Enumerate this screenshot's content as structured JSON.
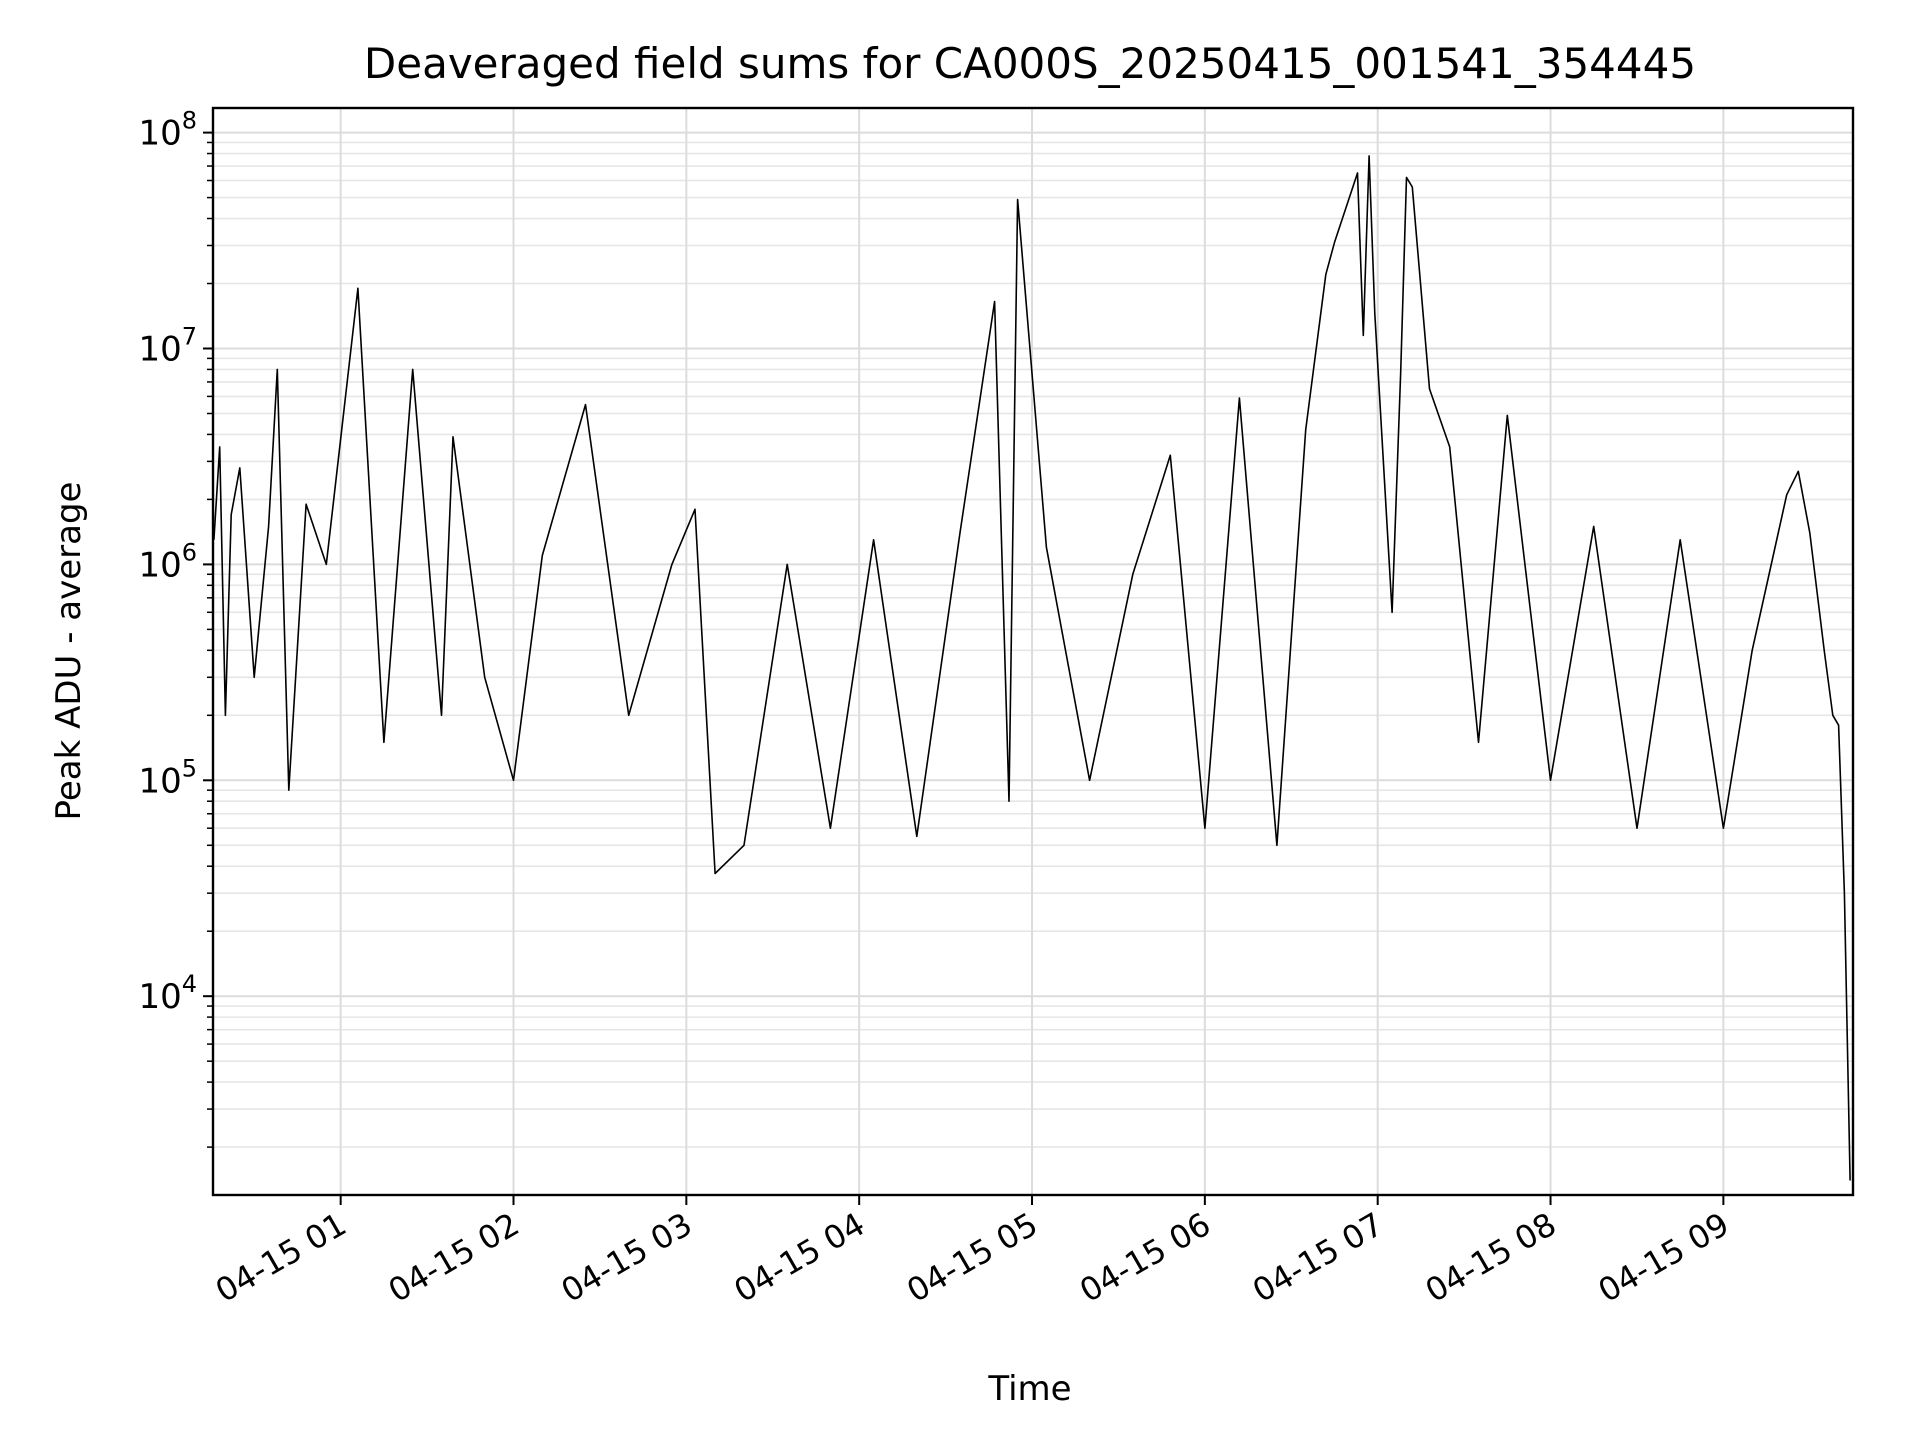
{
  "chart_data": {
    "type": "line",
    "title": "Deaveraged field sums for CA000S_20250415_001541_354445",
    "xlabel": "Time",
    "ylabel": "Peak ADU - average",
    "yscale": "log",
    "grid": true,
    "line_color": "#000000",
    "x_range": [
      "2025-04-15 00:15:41",
      "2025-04-15 09:45:00"
    ],
    "ylim": [
      1200,
      130000000
    ],
    "x_ticks": [
      {
        "label": "04-15 01",
        "value": "2025-04-15 01:00"
      },
      {
        "label": "04-15 02",
        "value": "2025-04-15 02:00"
      },
      {
        "label": "04-15 03",
        "value": "2025-04-15 03:00"
      },
      {
        "label": "04-15 04",
        "value": "2025-04-15 04:00"
      },
      {
        "label": "04-15 05",
        "value": "2025-04-15 05:00"
      },
      {
        "label": "04-15 06",
        "value": "2025-04-15 06:00"
      },
      {
        "label": "04-15 07",
        "value": "2025-04-15 07:00"
      },
      {
        "label": "04-15 08",
        "value": "2025-04-15 08:00"
      },
      {
        "label": "04-15 09",
        "value": "2025-04-15 09:00"
      }
    ],
    "y_ticks": [
      {
        "base": "10",
        "exp": "4",
        "value": 10000
      },
      {
        "base": "10",
        "exp": "5",
        "value": 100000
      },
      {
        "base": "10",
        "exp": "6",
        "value": 1000000
      },
      {
        "base": "10",
        "exp": "7",
        "value": 10000000
      },
      {
        "base": "10",
        "exp": "8",
        "value": 100000000
      }
    ],
    "series": [
      {
        "points": [
          [
            "2025-04-15 00:16",
            1300000
          ],
          [
            "2025-04-15 00:18",
            3500000
          ],
          [
            "2025-04-15 00:20",
            200000
          ],
          [
            "2025-04-15 00:22",
            1700000
          ],
          [
            "2025-04-15 00:25",
            2800000
          ],
          [
            "2025-04-15 00:30",
            300000
          ],
          [
            "2025-04-15 00:35",
            1500000
          ],
          [
            "2025-04-15 00:38",
            8000000
          ],
          [
            "2025-04-15 00:42",
            90000
          ],
          [
            "2025-04-15 00:48",
            1900000
          ],
          [
            "2025-04-15 00:55",
            1000000
          ],
          [
            "2025-04-15 01:06",
            19000000
          ],
          [
            "2025-04-15 01:15",
            150000
          ],
          [
            "2025-04-15 01:25",
            8000000
          ],
          [
            "2025-04-15 01:35",
            200000
          ],
          [
            "2025-04-15 01:39",
            3900000
          ],
          [
            "2025-04-15 01:50",
            300000
          ],
          [
            "2025-04-15 02:00",
            100000
          ],
          [
            "2025-04-15 02:10",
            1100000
          ],
          [
            "2025-04-15 02:25",
            5500000
          ],
          [
            "2025-04-15 02:40",
            200000
          ],
          [
            "2025-04-15 02:55",
            1000000
          ],
          [
            "2025-04-15 03:03",
            1800000
          ],
          [
            "2025-04-15 03:10",
            37000
          ],
          [
            "2025-04-15 03:20",
            50000
          ],
          [
            "2025-04-15 03:35",
            1000000
          ],
          [
            "2025-04-15 03:50",
            60000
          ],
          [
            "2025-04-15 04:05",
            1300000
          ],
          [
            "2025-04-15 04:20",
            55000
          ],
          [
            "2025-04-15 04:35",
            1400000
          ],
          [
            "2025-04-15 04:47",
            16500000
          ],
          [
            "2025-04-15 04:52",
            80000
          ],
          [
            "2025-04-15 04:55",
            49000000
          ],
          [
            "2025-04-15 05:05",
            1200000
          ],
          [
            "2025-04-15 05:20",
            100000
          ],
          [
            "2025-04-15 05:35",
            900000
          ],
          [
            "2025-04-15 05:48",
            3200000
          ],
          [
            "2025-04-15 06:00",
            60000
          ],
          [
            "2025-04-15 06:12",
            5900000
          ],
          [
            "2025-04-15 06:25",
            50000
          ],
          [
            "2025-04-15 06:35",
            4200000
          ],
          [
            "2025-04-15 06:42",
            22000000
          ],
          [
            "2025-04-15 06:45",
            31000000
          ],
          [
            "2025-04-15 06:53",
            65000000
          ],
          [
            "2025-04-15 06:55",
            11500000
          ],
          [
            "2025-04-15 06:57",
            78000000
          ],
          [
            "2025-04-15 06:59",
            14500000
          ],
          [
            "2025-04-15 07:05",
            600000
          ],
          [
            "2025-04-15 07:08",
            7800000
          ],
          [
            "2025-04-15 07:10",
            62000000
          ],
          [
            "2025-04-15 07:12",
            56000000
          ],
          [
            "2025-04-15 07:18",
            6500000
          ],
          [
            "2025-04-15 07:25",
            3500000
          ],
          [
            "2025-04-15 07:35",
            150000
          ],
          [
            "2025-04-15 07:45",
            4900000
          ],
          [
            "2025-04-15 08:00",
            100000
          ],
          [
            "2025-04-15 08:15",
            1500000
          ],
          [
            "2025-04-15 08:30",
            60000
          ],
          [
            "2025-04-15 08:45",
            1300000
          ],
          [
            "2025-04-15 09:00",
            60000
          ],
          [
            "2025-04-15 09:10",
            400000
          ],
          [
            "2025-04-15 09:22",
            2100000
          ],
          [
            "2025-04-15 09:26",
            2700000
          ],
          [
            "2025-04-15 09:30",
            1400000
          ],
          [
            "2025-04-15 09:35",
            400000
          ],
          [
            "2025-04-15 09:38",
            200000
          ],
          [
            "2025-04-15 09:40",
            180000
          ],
          [
            "2025-04-15 09:42",
            30000
          ],
          [
            "2025-04-15 09:44",
            1400
          ]
        ]
      }
    ]
  }
}
